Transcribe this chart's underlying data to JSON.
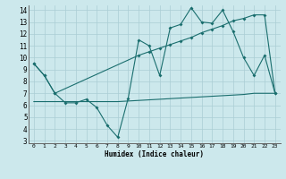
{
  "xlabel": "Humidex (Indice chaleur)",
  "bg_color": "#cce8ec",
  "grid_color": "#aacdd4",
  "line_color": "#1a6e6e",
  "xlim": [
    -0.5,
    23.5
  ],
  "ylim": [
    2.8,
    14.4
  ],
  "yticks": [
    3,
    4,
    5,
    6,
    7,
    8,
    9,
    10,
    11,
    12,
    13,
    14
  ],
  "xticks": [
    0,
    1,
    2,
    3,
    4,
    5,
    6,
    7,
    8,
    9,
    10,
    11,
    12,
    13,
    14,
    15,
    16,
    17,
    18,
    19,
    20,
    21,
    22,
    23
  ],
  "line1_x": [
    0,
    1,
    2,
    3,
    4,
    5,
    6,
    7,
    8,
    9,
    10,
    11,
    12,
    13,
    14,
    15,
    16,
    17,
    18,
    19,
    20,
    21,
    22,
    23
  ],
  "line1_y": [
    9.5,
    8.5,
    7.0,
    6.2,
    6.2,
    6.5,
    5.8,
    4.3,
    3.3,
    6.6,
    11.5,
    11.0,
    8.5,
    12.5,
    12.8,
    14.2,
    13.0,
    12.9,
    14.0,
    12.2,
    10.0,
    8.5,
    10.2,
    7.0
  ],
  "line2_x": [
    0,
    1,
    2,
    10,
    11,
    12,
    13,
    14,
    15,
    16,
    17,
    18,
    19,
    20,
    21,
    22,
    23
  ],
  "line2_y": [
    9.5,
    8.5,
    7.0,
    10.2,
    10.5,
    10.8,
    11.1,
    11.4,
    11.7,
    12.1,
    12.4,
    12.7,
    13.1,
    13.3,
    13.6,
    13.6,
    7.0
  ],
  "line3_x": [
    0,
    1,
    2,
    3,
    4,
    5,
    6,
    7,
    8,
    9,
    10,
    11,
    12,
    13,
    14,
    15,
    16,
    17,
    18,
    19,
    20,
    21,
    22,
    23
  ],
  "line3_y": [
    6.3,
    6.3,
    6.3,
    6.3,
    6.3,
    6.3,
    6.3,
    6.3,
    6.3,
    6.35,
    6.4,
    6.45,
    6.5,
    6.55,
    6.6,
    6.65,
    6.7,
    6.75,
    6.8,
    6.85,
    6.9,
    7.0,
    7.0,
    7.0
  ]
}
